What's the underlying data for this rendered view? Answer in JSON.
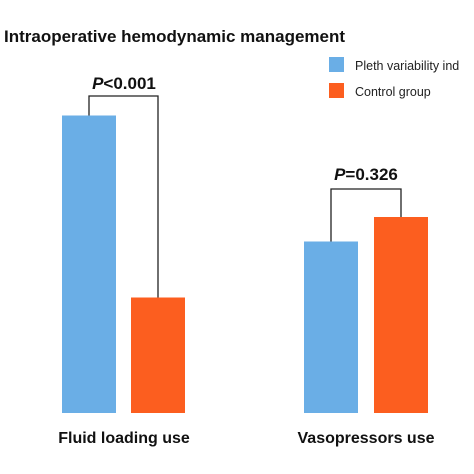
{
  "chart_data": {
    "type": "bar",
    "title": "Intraoperative hemodynamic management",
    "categories": [
      "Fluid loading use",
      "Vasopressors use"
    ],
    "series": [
      {
        "name": "Pleth variability ind",
        "color": "#6aaee6",
        "values": [
          85,
          49
        ]
      },
      {
        "name": "Control group",
        "color": "#fc5e1f",
        "values": [
          33,
          56
        ]
      }
    ],
    "ylim": [
      0,
      100
    ],
    "grid": false,
    "legend_position": "top-right",
    "annotations": [
      {
        "category": "Fluid loading use",
        "p_symbol": "P",
        "p_rest": "<0.001"
      },
      {
        "category": "Vasopressors use",
        "p_symbol": "P",
        "p_rest": "=0.326"
      }
    ]
  }
}
